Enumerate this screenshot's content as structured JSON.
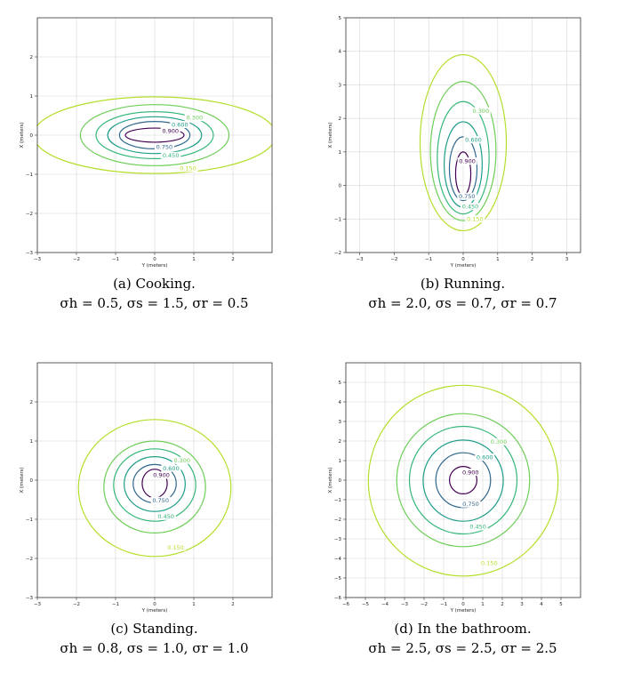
{
  "chart_data": [
    {
      "type": "contour",
      "xlabel": "Y (meters)",
      "ylabel": "X (meters)",
      "xlim": [
        -3,
        3
      ],
      "ylim": [
        -3,
        3
      ],
      "xticks": [
        -3,
        -2,
        -1,
        0,
        1,
        2
      ],
      "yticks": [
        -3,
        -2,
        -1,
        0,
        1,
        2
      ],
      "grid": true,
      "levels": [
        {
          "label": "0.150",
          "value": 0.15,
          "x_range": [
            -3.1,
            3.1
          ],
          "y_range": [
            -0.98,
            0.98
          ]
        },
        {
          "label": "0.300",
          "value": 0.3,
          "x_range": [
            -1.9,
            1.9
          ],
          "y_range": [
            -0.78,
            0.78
          ]
        },
        {
          "label": "0.450",
          "value": 0.45,
          "x_range": [
            -1.5,
            1.5
          ],
          "y_range": [
            -0.6,
            0.6
          ]
        },
        {
          "label": "0.600",
          "value": 0.6,
          "x_range": [
            -1.2,
            1.2
          ],
          "y_range": [
            -0.47,
            0.47
          ]
        },
        {
          "label": "0.750",
          "value": 0.75,
          "x_range": [
            -0.9,
            0.9
          ],
          "y_range": [
            -0.35,
            0.35
          ]
        },
        {
          "label": "0.900",
          "value": 0.9,
          "x_range": [
            -0.75,
            0.75
          ],
          "y_range": [
            -0.18,
            0.18
          ]
        }
      ],
      "caption_title": "(a) Cooking.",
      "caption_params": "σh = 0.5, σs = 1.5, σr = 0.5"
    },
    {
      "type": "contour",
      "xlabel": "Y (meters)",
      "ylabel": "X (meters)",
      "xlim": [
        -3.4,
        3.4
      ],
      "ylim": [
        -2,
        5
      ],
      "xticks": [
        -3,
        -2,
        -1,
        0,
        1,
        2,
        3
      ],
      "yticks": [
        -2,
        -1,
        0,
        1,
        2,
        3,
        4,
        5
      ],
      "grid": true,
      "levels": [
        {
          "label": "0.150",
          "value": 0.15,
          "x_range": [
            -1.25,
            1.25
          ],
          "y_range": [
            -1.35,
            3.9
          ]
        },
        {
          "label": "0.300",
          "value": 0.3,
          "x_range": [
            -0.95,
            0.95
          ],
          "y_range": [
            -1.05,
            3.1
          ]
        },
        {
          "label": "0.450",
          "value": 0.45,
          "x_range": [
            -0.75,
            0.75
          ],
          "y_range": [
            -0.85,
            2.5
          ]
        },
        {
          "label": "0.600",
          "value": 0.6,
          "x_range": [
            -0.55,
            0.55
          ],
          "y_range": [
            -0.65,
            1.9
          ]
        },
        {
          "label": "0.750",
          "value": 0.75,
          "x_range": [
            -0.4,
            0.4
          ],
          "y_range": [
            -0.45,
            1.45
          ]
        },
        {
          "label": "0.900",
          "value": 0.9,
          "x_range": [
            -0.22,
            0.22
          ],
          "y_range": [
            -0.3,
            1.0
          ]
        }
      ],
      "caption_title": "(b) Running.",
      "caption_params": "σh = 2.0, σs = 0.7, σr = 0.7"
    },
    {
      "type": "contour",
      "xlabel": "Y (meters)",
      "ylabel": "X (meters)",
      "xlim": [
        -3,
        3
      ],
      "ylim": [
        -3,
        3
      ],
      "xticks": [
        -3,
        -2,
        -1,
        0,
        1,
        2
      ],
      "yticks": [
        -3,
        -2,
        -1,
        0,
        1,
        2
      ],
      "grid": true,
      "levels": [
        {
          "label": "0.150",
          "value": 0.15,
          "x_range": [
            -1.95,
            1.95
          ],
          "y_range": [
            -1.95,
            1.55
          ]
        },
        {
          "label": "0.300",
          "value": 0.3,
          "x_range": [
            -1.3,
            1.3
          ],
          "y_range": [
            -1.35,
            1.0
          ]
        },
        {
          "label": "0.450",
          "value": 0.45,
          "x_range": [
            -1.05,
            1.05
          ],
          "y_range": [
            -1.05,
            0.8
          ]
        },
        {
          "label": "0.600",
          "value": 0.6,
          "x_range": [
            -0.78,
            0.78
          ],
          "y_range": [
            -0.8,
            0.6
          ]
        },
        {
          "label": "0.750",
          "value": 0.75,
          "x_range": [
            -0.55,
            0.55
          ],
          "y_range": [
            -0.58,
            0.4
          ]
        },
        {
          "label": "0.900",
          "value": 0.9,
          "x_range": [
            -0.32,
            0.32
          ],
          "y_range": [
            -0.45,
            0.28
          ]
        }
      ],
      "caption_title": "(c) Standing.",
      "caption_params": "σh = 0.8, σs = 1.0, σr = 1.0"
    },
    {
      "type": "contour",
      "xlabel": "Y (meters)",
      "ylabel": "X (meters)",
      "xlim": [
        -6,
        6
      ],
      "ylim": [
        -6,
        6
      ],
      "xticks": [
        -6,
        -5,
        -4,
        -3,
        -2,
        -1,
        0,
        1,
        2,
        3,
        4,
        5
      ],
      "yticks": [
        -6,
        -5,
        -4,
        -3,
        -2,
        -1,
        0,
        1,
        2,
        3,
        4,
        5
      ],
      "grid": true,
      "levels": [
        {
          "label": "0.150",
          "value": 0.15,
          "x_range": [
            -4.85,
            4.85
          ],
          "y_range": [
            -4.9,
            4.85
          ]
        },
        {
          "label": "0.300",
          "value": 0.3,
          "x_range": [
            -3.4,
            3.4
          ],
          "y_range": [
            -3.4,
            3.4
          ]
        },
        {
          "label": "0.450",
          "value": 0.45,
          "x_range": [
            -2.75,
            2.75
          ],
          "y_range": [
            -2.75,
            2.75
          ]
        },
        {
          "label": "0.600",
          "value": 0.6,
          "x_range": [
            -2.05,
            2.05
          ],
          "y_range": [
            -2.1,
            2.05
          ]
        },
        {
          "label": "0.750",
          "value": 0.75,
          "x_range": [
            -1.4,
            1.4
          ],
          "y_range": [
            -1.4,
            1.4
          ]
        },
        {
          "label": "0.900",
          "value": 0.9,
          "x_range": [
            -0.7,
            0.7
          ],
          "y_range": [
            -0.7,
            0.7
          ]
        }
      ],
      "caption_title": "(d) In the bathroom.",
      "caption_params": "σh = 2.5, σs = 2.5, σr = 2.5"
    }
  ],
  "colors": {
    "0.150": "#b5de2b",
    "0.300": "#6ece58",
    "0.450": "#35b779",
    "0.600": "#1f9e89",
    "0.750": "#31688e",
    "0.900": "#440154",
    "grid": "#d8d8d8",
    "axis": "#333333"
  }
}
